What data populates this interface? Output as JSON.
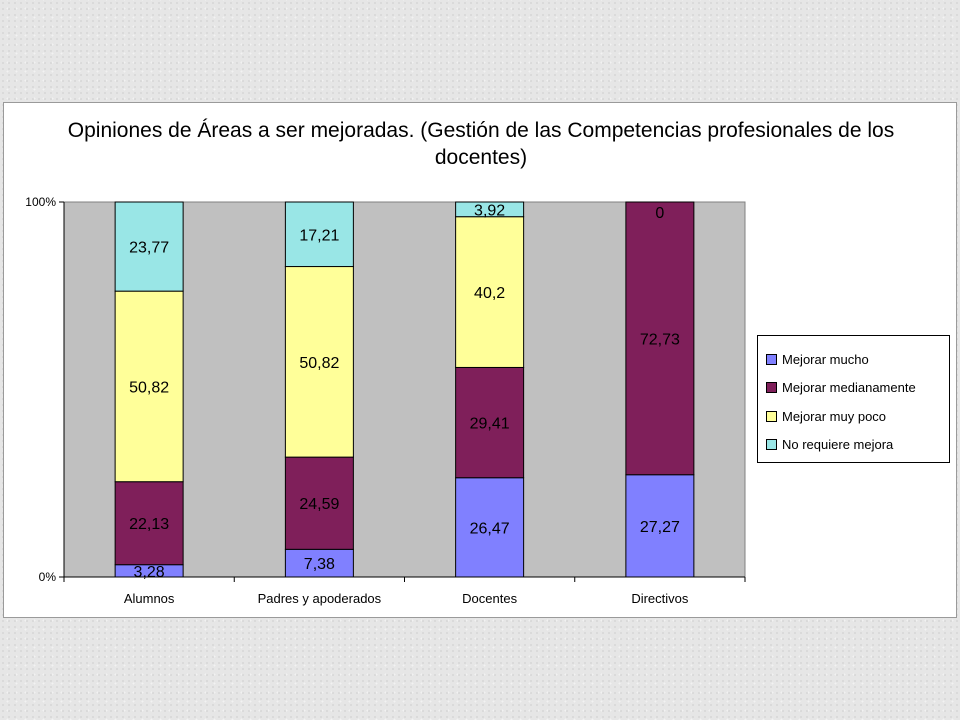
{
  "chart_data": {
    "type": "bar",
    "stacked": "percent",
    "title": "Opiniones de Áreas a ser mejoradas. (Gestión de las Competencias profesionales de los docentes)",
    "title_lines": [
      "Opiniones de Áreas a ser mejoradas. (Gestión de las Competencias profesionales de los",
      "docentes)"
    ],
    "categories": [
      "Alumnos",
      "Padres y apoderados",
      "Docentes",
      "Directivos"
    ],
    "y_ticks": [
      "0%",
      "100%"
    ],
    "ylim": [
      0,
      100
    ],
    "grid": false,
    "legend_position": "right",
    "series": [
      {
        "name": "Mejorar mucho",
        "color": "#8080ff",
        "values": [
          3.28,
          7.38,
          26.47,
          27.27
        ],
        "labels": [
          "3,28",
          "7,38",
          "26,47",
          "27,27"
        ]
      },
      {
        "name": "Mejorar medianamente",
        "color": "#7f1f5a",
        "values": [
          22.13,
          24.59,
          29.41,
          72.73
        ],
        "labels": [
          "22,13",
          "24,59",
          "29,41",
          "72,73"
        ]
      },
      {
        "name": "Mejorar muy poco",
        "color": "#ffff99",
        "values": [
          50.82,
          50.82,
          40.2,
          0
        ],
        "labels": [
          "50,82",
          "50,82",
          "40,2",
          ""
        ]
      },
      {
        "name": "No requiere mejora",
        "color": "#99e6e6",
        "values": [
          23.77,
          17.21,
          3.92,
          0
        ],
        "labels": [
          "23,77",
          "17,21",
          "3,92",
          "0"
        ]
      }
    ]
  }
}
